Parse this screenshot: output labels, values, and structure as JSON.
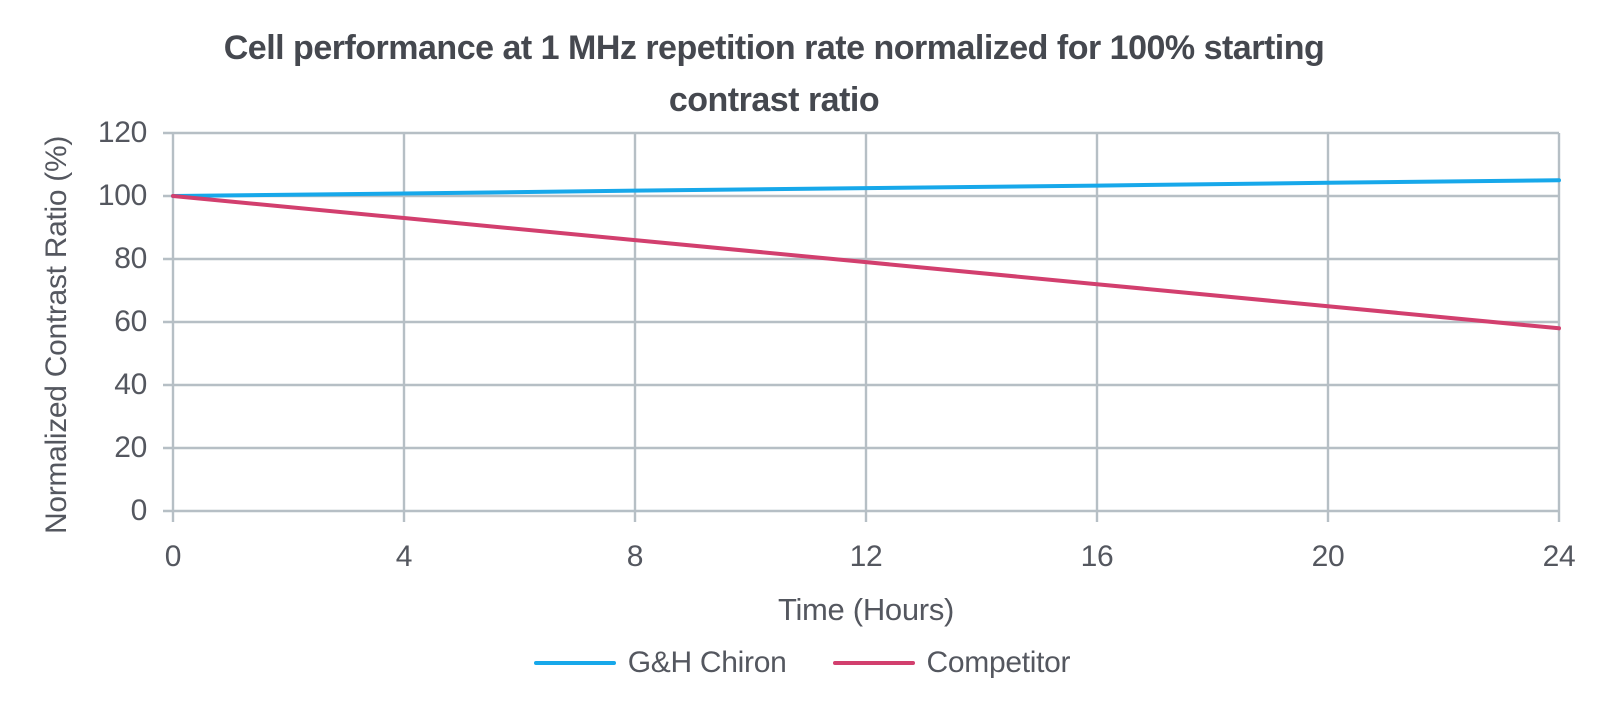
{
  "header": {
    "title_line1": "Cell performance at 1 MHz repetition rate normalized for 100% starting",
    "title_line2": "contrast ratio"
  },
  "chart_data": {
    "type": "line",
    "title": "Cell performance at 1 MHz repetition rate normalized for 100% starting contrast ratio",
    "xlabel": "Time (Hours)",
    "ylabel": "Normalized Contrast Ratio (%)",
    "x": [
      0,
      4,
      8,
      12,
      16,
      20,
      24
    ],
    "xlim": [
      0,
      24
    ],
    "ylim": [
      0,
      120
    ],
    "xticks": [
      0,
      4,
      8,
      12,
      16,
      20,
      24
    ],
    "yticks": [
      0,
      20,
      40,
      60,
      80,
      100,
      120
    ],
    "grid": true,
    "legend_position": "bottom",
    "series": [
      {
        "name": "G&H Chiron",
        "color": "#17A8EA",
        "values": [
          100,
          100.8,
          101.7,
          102.5,
          103.3,
          104.2,
          105
        ]
      },
      {
        "name": "Competitor",
        "color": "#D23F6E",
        "values": [
          100,
          93,
          86,
          79,
          72,
          65,
          58
        ]
      }
    ]
  },
  "colors": {
    "grid": "#B6BFC5",
    "axis_text": "#54575F",
    "title_text": "#45484F",
    "background": "#FFFFFF"
  }
}
